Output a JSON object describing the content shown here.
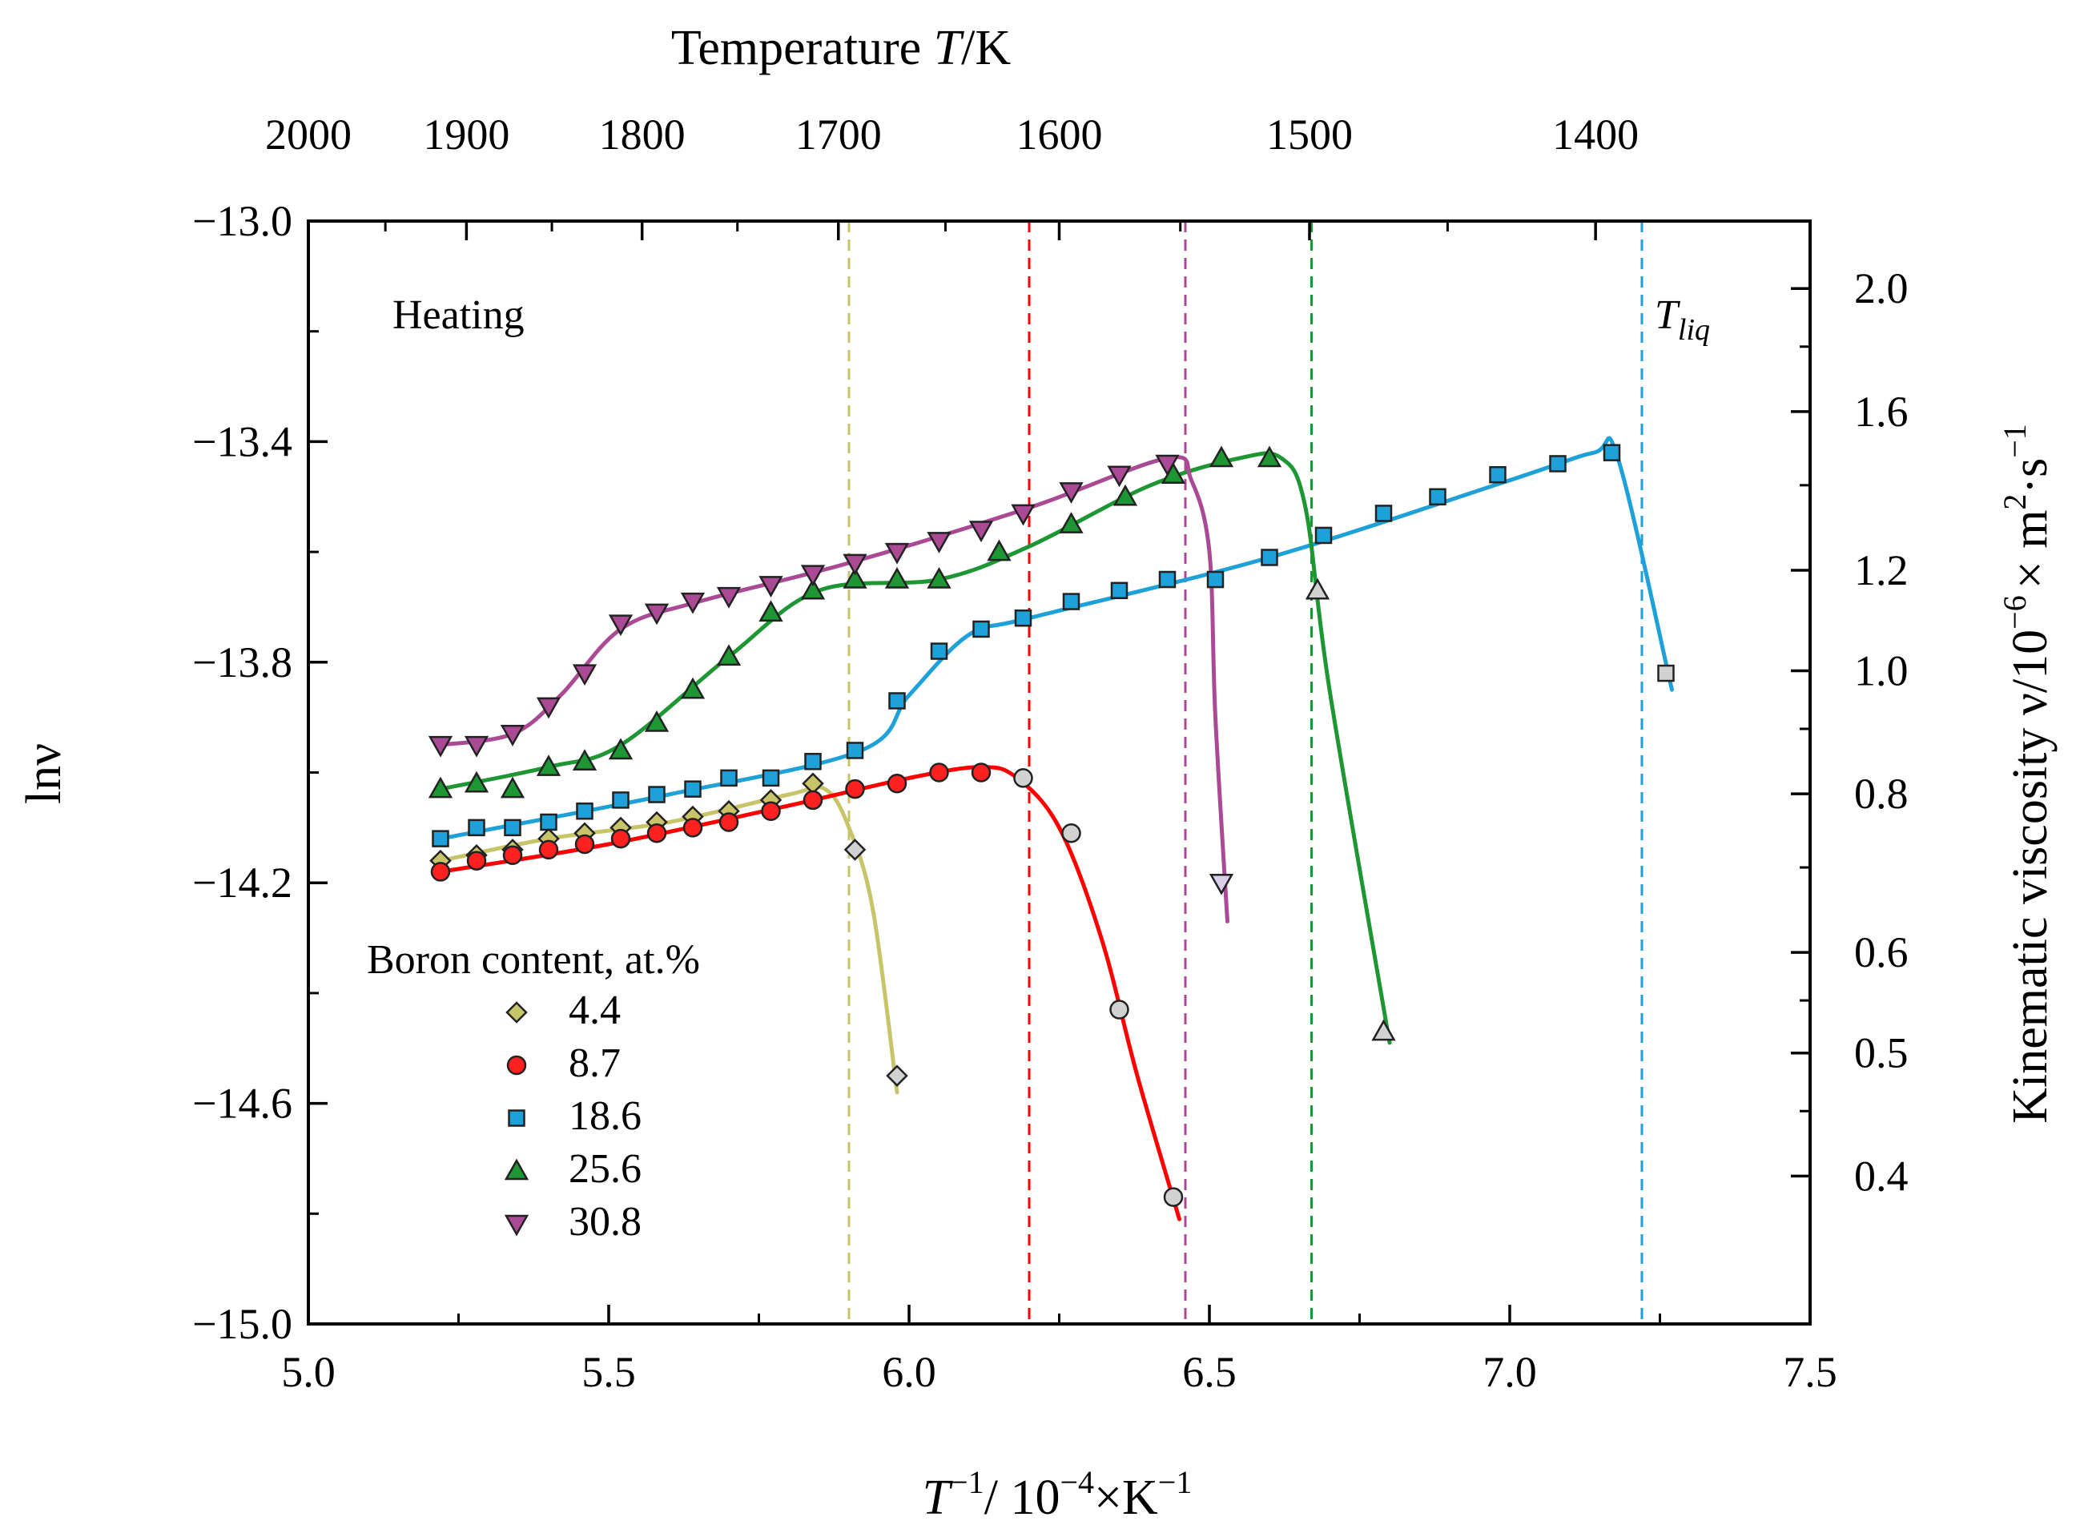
{
  "chart_data": {
    "type": "line",
    "title": "",
    "xlabel": {
      "main": "T",
      "sup1": "−1",
      "mid": "/ 10",
      "sup2": "−4",
      "unit": "×K",
      "sup3": "−1"
    },
    "ylabel": "lnν",
    "top_xlabel": {
      "main": "Temperature ",
      "italic": "T",
      "unit": "/K"
    },
    "right_ylabel": {
      "main": "Kinematic viscosity ν/10",
      "sup1": "−6",
      "mid": "× m",
      "sup2": "2",
      "dot": "·s",
      "sup3": "−1"
    },
    "annotation": "Heating",
    "tliq_label": {
      "main": "T",
      "sub": "liq"
    },
    "legend_title": "Boron content, at.%",
    "xlim": [
      5.0,
      7.5
    ],
    "ylim": [
      -15.0,
      -13.0
    ],
    "x_ticks": [
      "5.0",
      "5.5",
      "6.0",
      "6.5",
      "7.0",
      "7.5"
    ],
    "x_tick_values": [
      5.0,
      5.5,
      6.0,
      6.5,
      7.0,
      7.5
    ],
    "y_ticks": [
      "−13.0",
      "−13.4",
      "−13.8",
      "−14.2",
      "−14.6",
      "−15.0"
    ],
    "y_tick_values": [
      -13.0,
      -13.4,
      -13.8,
      -14.2,
      -14.6,
      -15.0
    ],
    "top_ticks": [
      "2000",
      "1900",
      "1800",
      "1700",
      "1600",
      "1500",
      "1400"
    ],
    "top_tick_values": [
      2000,
      1900,
      1800,
      1700,
      1600,
      1500,
      1400
    ],
    "right_ticks": [
      "2.0",
      "1.6",
      "1.2",
      "1.0",
      "0.8",
      "0.6",
      "0.5",
      "0.4"
    ],
    "right_tick_values": [
      2.0,
      1.6,
      1.2,
      1.0,
      0.8,
      0.6,
      0.5,
      0.4
    ],
    "series": [
      {
        "name": "4.4",
        "color": "#c8c46a",
        "marker": "diamond",
        "fill": "#c8c46a",
        "tliq": 5.9,
        "x": [
          5.22,
          5.28,
          5.34,
          5.4,
          5.46,
          5.52,
          5.58,
          5.64,
          5.7,
          5.77,
          5.84
        ],
        "y": [
          -14.16,
          -14.15,
          -14.14,
          -14.12,
          -14.11,
          -14.1,
          -14.09,
          -14.08,
          -14.07,
          -14.05,
          -14.02
        ],
        "cooling_x": [
          5.91,
          5.98
        ],
        "cooling_y": [
          -14.14,
          -14.55
        ],
        "fit_x": [
          5.22,
          5.4,
          5.6,
          5.8,
          5.86,
          5.9,
          5.94,
          5.98
        ],
        "fit_y": [
          -14.16,
          -14.12,
          -14.09,
          -14.04,
          -14.03,
          -14.1,
          -14.25,
          -14.58
        ]
      },
      {
        "name": "8.7",
        "color": "#ff0000",
        "marker": "circle",
        "fill": "#ff2020",
        "tliq": 6.2,
        "x": [
          5.22,
          5.28,
          5.34,
          5.4,
          5.46,
          5.52,
          5.58,
          5.64,
          5.7,
          5.77,
          5.84,
          5.91,
          5.98,
          6.05,
          6.12
        ],
        "y": [
          -14.18,
          -14.16,
          -14.15,
          -14.14,
          -14.13,
          -14.12,
          -14.11,
          -14.1,
          -14.09,
          -14.07,
          -14.05,
          -14.03,
          -14.02,
          -14.0,
          -14.0
        ],
        "cooling_x": [
          6.19,
          6.27,
          6.35,
          6.44
        ],
        "cooling_y": [
          -14.01,
          -14.11,
          -14.43,
          -14.77
        ],
        "fit_x": [
          5.22,
          5.5,
          5.8,
          6.0,
          6.12,
          6.18,
          6.25,
          6.32,
          6.38,
          6.45
        ],
        "fit_y": [
          -14.18,
          -14.13,
          -14.06,
          -14.01,
          -13.99,
          -14.01,
          -14.1,
          -14.3,
          -14.55,
          -14.81
        ]
      },
      {
        "name": "18.6",
        "color": "#1ea0d8",
        "marker": "square",
        "fill": "#1ea0d8",
        "tliq": 7.22,
        "x": [
          5.22,
          5.28,
          5.34,
          5.4,
          5.46,
          5.52,
          5.58,
          5.64,
          5.7,
          5.77,
          5.84,
          5.91,
          5.98,
          6.05,
          6.12,
          6.19,
          6.27,
          6.35,
          6.43,
          6.51,
          6.6,
          6.69,
          6.79,
          6.88,
          6.98,
          7.08,
          7.17
        ],
        "y": [
          -14.12,
          -14.1,
          -14.1,
          -14.09,
          -14.07,
          -14.05,
          -14.04,
          -14.03,
          -14.01,
          -14.01,
          -13.98,
          -13.96,
          -13.87,
          -13.78,
          -13.74,
          -13.72,
          -13.69,
          -13.67,
          -13.65,
          -13.65,
          -13.61,
          -13.57,
          -13.53,
          -13.5,
          -13.46,
          -13.44,
          -13.42
        ],
        "cooling_x": [
          7.26
        ],
        "cooling_y": [
          -13.82
        ],
        "fit_x": [
          5.22,
          5.6,
          5.92,
          6.0,
          6.1,
          6.2,
          6.6,
          7.0,
          7.14,
          7.18,
          7.27
        ],
        "fit_y": [
          -14.12,
          -14.04,
          -13.96,
          -13.86,
          -13.75,
          -13.72,
          -13.61,
          -13.47,
          -13.42,
          -13.43,
          -13.85
        ]
      },
      {
        "name": "25.6",
        "color": "#1e9633",
        "marker": "triangle-up",
        "fill": "#1e9633",
        "tliq": 6.67,
        "x": [
          5.22,
          5.28,
          5.34,
          5.4,
          5.46,
          5.52,
          5.58,
          5.64,
          5.7,
          5.77,
          5.84,
          5.91,
          5.98,
          6.05,
          6.15,
          6.27,
          6.36,
          6.44,
          6.52,
          6.6
        ],
        "y": [
          -14.03,
          -14.02,
          -14.03,
          -13.99,
          -13.98,
          -13.96,
          -13.91,
          -13.85,
          -13.79,
          -13.71,
          -13.67,
          -13.65,
          -13.65,
          -13.65,
          -13.6,
          -13.55,
          -13.5,
          -13.46,
          -13.43,
          -13.43
        ],
        "cooling_x": [
          6.68,
          6.79
        ],
        "cooling_y": [
          -13.67,
          -14.47
        ],
        "fit_x": [
          5.22,
          5.4,
          5.52,
          5.7,
          5.85,
          6.05,
          6.2,
          6.4,
          6.55,
          6.62,
          6.66,
          6.7,
          6.8
        ],
        "fit_y": [
          -14.03,
          -13.99,
          -13.95,
          -13.79,
          -13.67,
          -13.65,
          -13.59,
          -13.48,
          -13.43,
          -13.43,
          -13.52,
          -13.85,
          -14.49
        ]
      },
      {
        "name": "30.8",
        "color": "#aa4a94",
        "marker": "triangle-down",
        "fill": "#aa4a94",
        "tliq": 6.46,
        "x": [
          5.22,
          5.28,
          5.34,
          5.4,
          5.46,
          5.52,
          5.58,
          5.64,
          5.7,
          5.77,
          5.84,
          5.91,
          5.98,
          6.05,
          6.12,
          6.19,
          6.27,
          6.35,
          6.43
        ],
        "y": [
          -13.95,
          -13.95,
          -13.93,
          -13.88,
          -13.82,
          -13.73,
          -13.71,
          -13.69,
          -13.68,
          -13.66,
          -13.64,
          -13.62,
          -13.6,
          -13.58,
          -13.56,
          -13.53,
          -13.49,
          -13.46,
          -13.44
        ],
        "cooling_x": [
          6.52
        ],
        "cooling_y": [
          -14.2
        ],
        "fit_x": [
          5.22,
          5.34,
          5.42,
          5.52,
          5.65,
          5.9,
          6.2,
          6.43,
          6.47,
          6.5,
          6.51,
          6.53
        ],
        "fit_y": [
          -13.95,
          -13.93,
          -13.86,
          -13.74,
          -13.69,
          -13.62,
          -13.52,
          -13.43,
          -13.47,
          -13.6,
          -13.9,
          -14.27
        ]
      }
    ]
  }
}
